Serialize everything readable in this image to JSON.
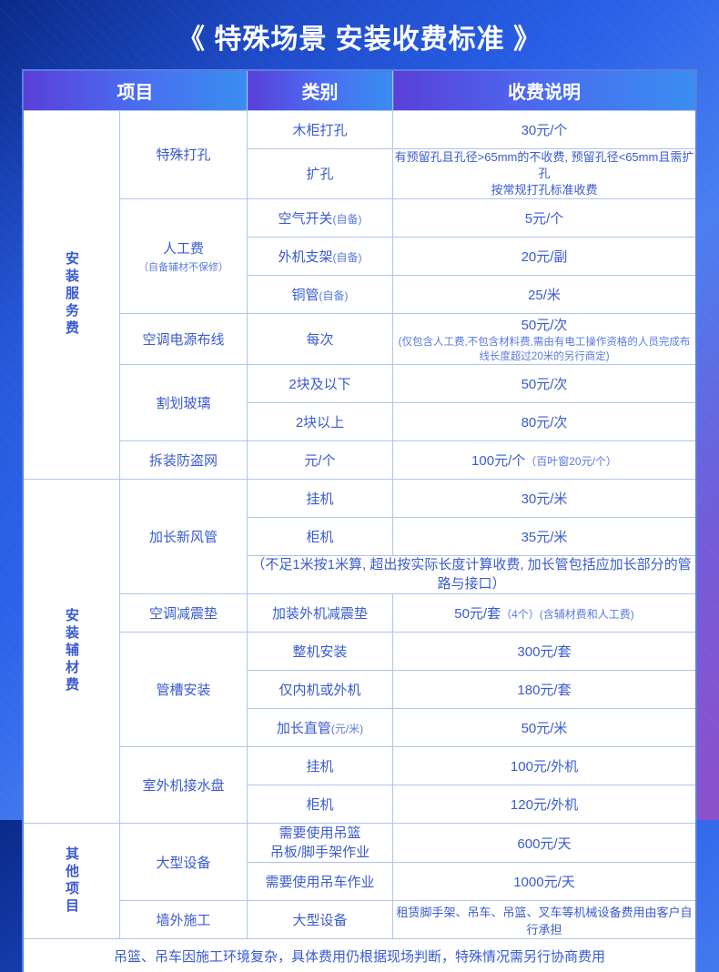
{
  "title": "《 特殊场景 安装收费标准 》",
  "headers": {
    "col1": "项目",
    "col2": "类别",
    "col3": "收费说明"
  },
  "groups": [
    {
      "name": "安装服务费",
      "rows": [
        {
          "project": "特殊打孔",
          "project_rows": 2,
          "type": "木柜打孔",
          "desc": "30元/个"
        },
        {
          "type": "扩孔",
          "desc_two_line": "有预留孔且孔径>65mm的不收费, 预留孔径<65mm且需扩孔\n按常规打孔标准收费"
        },
        {
          "project": "人工费",
          "project_sub": "（自备辅材不保修）",
          "project_rows": 3,
          "type": "空气开关",
          "type_note": "(自备)",
          "desc": "5元/个"
        },
        {
          "type": "外机支架",
          "type_note": "(自备)",
          "desc": "20元/副"
        },
        {
          "type": "铜管",
          "type_note": "(自备)",
          "desc": "25/米"
        },
        {
          "project": "空调电源布线",
          "project_rows": 1,
          "type": "每次",
          "desc": "50元/次",
          "desc_note": "(仅包含人工费,不包含材料费,需由有电工操作资格的人员完成布线长度超过20米的另行商定)"
        },
        {
          "project": "割划玻璃",
          "project_rows": 2,
          "type": "2块及以下",
          "desc": "50元/次"
        },
        {
          "type": "2块以上",
          "desc": "80元/次"
        },
        {
          "project": "拆装防盗网",
          "project_rows": 1,
          "type": "元/个",
          "desc": "100元/个",
          "desc_note_inline": "（百叶窗20元/个）"
        }
      ]
    },
    {
      "name": "安装辅材费",
      "rows": [
        {
          "project": "加长新风管",
          "project_rows": 3,
          "type": "挂机",
          "desc": "30元/米"
        },
        {
          "type": "柜机",
          "desc": "35元/米"
        },
        {
          "full_note": "（不足1米按1米算, 超出按实际长度计算收费, 加长管包括应加长部分的管路与接口）",
          "span": 2
        },
        {
          "project": "空调减震垫",
          "project_rows": 1,
          "type": "加装外机减震垫",
          "desc": "50元/套",
          "desc_note_inline": "（4个）(含辅材费和人工费)"
        },
        {
          "project": "管槽安装",
          "project_rows": 3,
          "type": "整机安装",
          "desc": "300元/套"
        },
        {
          "type": "仅内机或外机",
          "desc": "180元/套"
        },
        {
          "type": "加长直管",
          "type_note": "(元/米)",
          "desc": "50元/米"
        },
        {
          "project": "室外机接水盘",
          "project_rows": 2,
          "type": "挂机",
          "desc": "100元/外机"
        },
        {
          "type": "柜机",
          "desc": "120元/外机"
        }
      ]
    },
    {
      "name": "其他项目",
      "rows": [
        {
          "project": "大型设备",
          "project_rows": 2,
          "type_two_line": "需要使用吊篮\n吊板/脚手架作业",
          "desc": "600元/天"
        },
        {
          "type": "需要使用吊车作业",
          "desc": "1000元/天"
        },
        {
          "project": "墙外施工",
          "project_rows": 1,
          "type": "大型设备",
          "desc_plain": "租赁脚手架、吊车、吊篮、叉车等机械设备费用由客户自行承担"
        }
      ]
    }
  ],
  "footnote": "吊篮、吊车因施工环境复杂，具体费用仍根据现场判断，特殊情况需另行协商费用"
}
